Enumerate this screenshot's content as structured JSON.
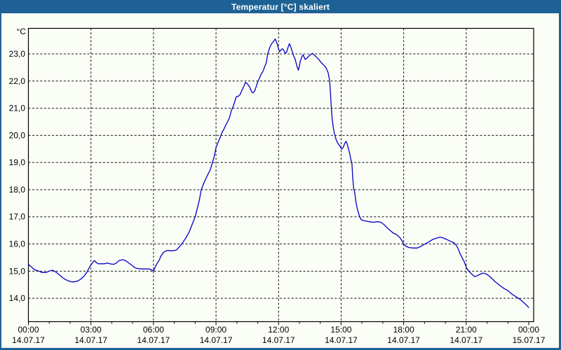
{
  "window": {
    "title": "Temperatur [°C] skaliert",
    "title_bar_color": "#1e6295",
    "border_color": "#1e6295",
    "background_color": "#fbfdf7"
  },
  "chart_data": {
    "type": "line",
    "title": "Temperatur [°C] skaliert",
    "y_unit_label": "°C",
    "xlabel": "",
    "ylabel": "",
    "grid": "dashed",
    "legend": "none",
    "line_color": "#0000c4",
    "ylim": [
      13.1,
      23.95
    ],
    "xlim_hours": [
      0,
      24.2
    ],
    "minor_tick_hours": 1,
    "y_ticks": [
      {
        "value": 23,
        "label": "23,0"
      },
      {
        "value": 22,
        "label": "22,0"
      },
      {
        "value": 21,
        "label": "21,0"
      },
      {
        "value": 20,
        "label": "20,0"
      },
      {
        "value": 19,
        "label": "19,0"
      },
      {
        "value": 18,
        "label": "18,0"
      },
      {
        "value": 17,
        "label": "17,0"
      },
      {
        "value": 16,
        "label": "16,0"
      },
      {
        "value": 15,
        "label": "15,0"
      },
      {
        "value": 14,
        "label": "14,0"
      }
    ],
    "x_ticks": [
      {
        "hour": 0,
        "time": "00:00",
        "date": "14.07.17"
      },
      {
        "hour": 3,
        "time": "03:00",
        "date": "14.07.17"
      },
      {
        "hour": 6,
        "time": "06:00",
        "date": "14.07.17"
      },
      {
        "hour": 9,
        "time": "09:00",
        "date": "14.07.17"
      },
      {
        "hour": 12,
        "time": "12:00",
        "date": "14.07.17"
      },
      {
        "hour": 15,
        "time": "15:00",
        "date": "14.07.17"
      },
      {
        "hour": 18,
        "time": "18:00",
        "date": "14.07.17"
      },
      {
        "hour": 21,
        "time": "21:00",
        "date": "14.07.17"
      },
      {
        "hour": 24,
        "time": "00:00",
        "date": "15.07.17"
      }
    ],
    "series": [
      {
        "name": "Temperatur",
        "points": [
          [
            0.0,
            15.25
          ],
          [
            0.15,
            15.15
          ],
          [
            0.3,
            15.05
          ],
          [
            0.5,
            15.0
          ],
          [
            0.65,
            14.95
          ],
          [
            0.85,
            14.95
          ],
          [
            1.0,
            15.0
          ],
          [
            1.1,
            15.03
          ],
          [
            1.2,
            15.02
          ],
          [
            1.35,
            14.95
          ],
          [
            1.5,
            14.85
          ],
          [
            1.65,
            14.75
          ],
          [
            1.8,
            14.68
          ],
          [
            2.0,
            14.62
          ],
          [
            2.15,
            14.6
          ],
          [
            2.35,
            14.63
          ],
          [
            2.5,
            14.7
          ],
          [
            2.65,
            14.8
          ],
          [
            2.8,
            14.95
          ],
          [
            2.9,
            15.1
          ],
          [
            3.0,
            15.23
          ],
          [
            3.1,
            15.33
          ],
          [
            3.17,
            15.39
          ],
          [
            3.25,
            15.32
          ],
          [
            3.35,
            15.27
          ],
          [
            3.5,
            15.27
          ],
          [
            3.65,
            15.27
          ],
          [
            3.78,
            15.3
          ],
          [
            3.9,
            15.27
          ],
          [
            4.1,
            15.25
          ],
          [
            4.22,
            15.3
          ],
          [
            4.35,
            15.39
          ],
          [
            4.53,
            15.42
          ],
          [
            4.65,
            15.39
          ],
          [
            4.78,
            15.32
          ],
          [
            4.9,
            15.25
          ],
          [
            5.0,
            15.19
          ],
          [
            5.1,
            15.13
          ],
          [
            5.2,
            15.1
          ],
          [
            5.4,
            15.08
          ],
          [
            5.6,
            15.08
          ],
          [
            5.8,
            15.08
          ],
          [
            5.9,
            15.05
          ],
          [
            6.0,
            15.0
          ],
          [
            6.1,
            15.19
          ],
          [
            6.27,
            15.4
          ],
          [
            6.38,
            15.59
          ],
          [
            6.5,
            15.7
          ],
          [
            6.65,
            15.76
          ],
          [
            6.8,
            15.75
          ],
          [
            6.95,
            15.75
          ],
          [
            7.1,
            15.78
          ],
          [
            7.25,
            15.9
          ],
          [
            7.4,
            16.05
          ],
          [
            7.55,
            16.22
          ],
          [
            7.7,
            16.42
          ],
          [
            7.82,
            16.65
          ],
          [
            7.92,
            16.85
          ],
          [
            8.0,
            17.0
          ],
          [
            8.1,
            17.3
          ],
          [
            8.2,
            17.62
          ],
          [
            8.29,
            18.0
          ],
          [
            8.45,
            18.3
          ],
          [
            8.6,
            18.55
          ],
          [
            8.72,
            18.72
          ],
          [
            8.83,
            19.0
          ],
          [
            8.92,
            19.25
          ],
          [
            9.0,
            19.55
          ],
          [
            9.1,
            19.75
          ],
          [
            9.19,
            19.9
          ],
          [
            9.28,
            20.1
          ],
          [
            9.36,
            20.2
          ],
          [
            9.44,
            20.34
          ],
          [
            9.55,
            20.5
          ],
          [
            9.64,
            20.64
          ],
          [
            9.73,
            20.9
          ],
          [
            9.84,
            21.1
          ],
          [
            9.92,
            21.3
          ],
          [
            9.98,
            21.43
          ],
          [
            10.07,
            21.44
          ],
          [
            10.15,
            21.5
          ],
          [
            10.25,
            21.67
          ],
          [
            10.33,
            21.8
          ],
          [
            10.41,
            21.95
          ],
          [
            10.5,
            21.9
          ],
          [
            10.6,
            21.8
          ],
          [
            10.66,
            21.69
          ],
          [
            10.73,
            21.58
          ],
          [
            10.78,
            21.57
          ],
          [
            10.85,
            21.63
          ],
          [
            10.93,
            21.8
          ],
          [
            11.0,
            21.97
          ],
          [
            11.08,
            22.1
          ],
          [
            11.16,
            22.25
          ],
          [
            11.25,
            22.36
          ],
          [
            11.34,
            22.54
          ],
          [
            11.41,
            22.67
          ],
          [
            11.48,
            23.0
          ],
          [
            11.56,
            23.2
          ],
          [
            11.65,
            23.36
          ],
          [
            11.75,
            23.45
          ],
          [
            11.84,
            23.55
          ],
          [
            11.92,
            23.4
          ],
          [
            11.98,
            23.23
          ],
          [
            12.05,
            23.08
          ],
          [
            12.12,
            23.15
          ],
          [
            12.19,
            23.19
          ],
          [
            12.25,
            23.13
          ],
          [
            12.32,
            23.02
          ],
          [
            12.38,
            23.06
          ],
          [
            12.45,
            23.23
          ],
          [
            12.52,
            23.38
          ],
          [
            12.58,
            23.27
          ],
          [
            12.65,
            23.1
          ],
          [
            12.72,
            22.93
          ],
          [
            12.8,
            22.8
          ],
          [
            12.88,
            22.55
          ],
          [
            12.95,
            22.4
          ],
          [
            13.05,
            22.75
          ],
          [
            13.12,
            22.9
          ],
          [
            13.18,
            22.97
          ],
          [
            13.27,
            22.8
          ],
          [
            13.35,
            22.84
          ],
          [
            13.48,
            22.94
          ],
          [
            13.62,
            23.02
          ],
          [
            13.7,
            22.97
          ],
          [
            13.82,
            22.88
          ],
          [
            13.93,
            22.8
          ],
          [
            14.04,
            22.68
          ],
          [
            14.15,
            22.6
          ],
          [
            14.27,
            22.5
          ],
          [
            14.32,
            22.42
          ],
          [
            14.38,
            22.3
          ],
          [
            14.43,
            22.1
          ],
          [
            14.47,
            21.8
          ],
          [
            14.5,
            21.4
          ],
          [
            14.53,
            21.0
          ],
          [
            14.57,
            20.6
          ],
          [
            14.62,
            20.3
          ],
          [
            14.67,
            20.1
          ],
          [
            14.72,
            19.95
          ],
          [
            14.78,
            19.8
          ],
          [
            14.85,
            19.7
          ],
          [
            14.95,
            19.6
          ],
          [
            15.03,
            19.5
          ],
          [
            15.1,
            19.55
          ],
          [
            15.17,
            19.7
          ],
          [
            15.24,
            19.78
          ],
          [
            15.3,
            19.65
          ],
          [
            15.37,
            19.45
          ],
          [
            15.42,
            19.3
          ],
          [
            15.47,
            19.1
          ],
          [
            15.52,
            18.95
          ],
          [
            15.56,
            18.4
          ],
          [
            15.6,
            18.05
          ],
          [
            15.65,
            17.9
          ],
          [
            15.7,
            17.6
          ],
          [
            15.76,
            17.35
          ],
          [
            15.82,
            17.18
          ],
          [
            15.88,
            17.03
          ],
          [
            15.94,
            16.93
          ],
          [
            16.0,
            16.88
          ],
          [
            16.15,
            16.85
          ],
          [
            16.35,
            16.82
          ],
          [
            16.55,
            16.8
          ],
          [
            16.75,
            16.82
          ],
          [
            16.9,
            16.8
          ],
          [
            17.05,
            16.72
          ],
          [
            17.2,
            16.6
          ],
          [
            17.35,
            16.5
          ],
          [
            17.5,
            16.4
          ],
          [
            17.65,
            16.35
          ],
          [
            17.8,
            16.25
          ],
          [
            17.92,
            16.12
          ],
          [
            18.0,
            16.0
          ],
          [
            18.1,
            15.92
          ],
          [
            18.25,
            15.87
          ],
          [
            18.45,
            15.85
          ],
          [
            18.65,
            15.85
          ],
          [
            18.8,
            15.9
          ],
          [
            18.95,
            15.97
          ],
          [
            19.1,
            16.03
          ],
          [
            19.25,
            16.1
          ],
          [
            19.4,
            16.17
          ],
          [
            19.6,
            16.22
          ],
          [
            19.75,
            16.25
          ],
          [
            19.9,
            16.22
          ],
          [
            20.05,
            16.17
          ],
          [
            20.25,
            16.1
          ],
          [
            20.4,
            16.05
          ],
          [
            20.5,
            15.97
          ],
          [
            20.6,
            15.85
          ],
          [
            20.7,
            15.65
          ],
          [
            20.8,
            15.5
          ],
          [
            20.9,
            15.35
          ],
          [
            21.0,
            15.15
          ],
          [
            21.1,
            15.02
          ],
          [
            21.25,
            14.9
          ],
          [
            21.4,
            14.8
          ],
          [
            21.5,
            14.82
          ],
          [
            21.65,
            14.88
          ],
          [
            21.8,
            14.93
          ],
          [
            21.95,
            14.9
          ],
          [
            22.1,
            14.82
          ],
          [
            22.25,
            14.72
          ],
          [
            22.4,
            14.6
          ],
          [
            22.6,
            14.48
          ],
          [
            22.8,
            14.37
          ],
          [
            23.0,
            14.28
          ],
          [
            23.2,
            14.15
          ],
          [
            23.4,
            14.05
          ],
          [
            23.55,
            13.98
          ],
          [
            23.7,
            13.88
          ],
          [
            23.85,
            13.78
          ],
          [
            24.0,
            13.66
          ]
        ]
      }
    ]
  }
}
